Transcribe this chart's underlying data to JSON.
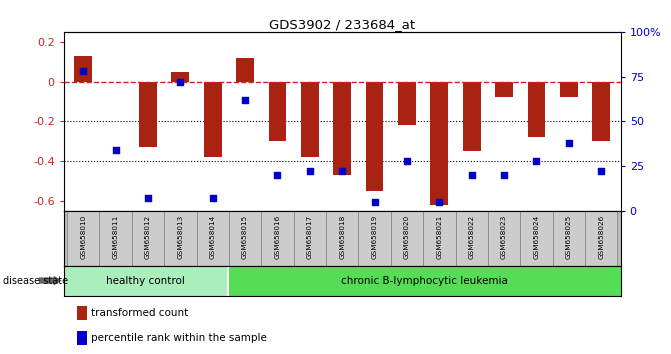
{
  "title": "GDS3902 / 233684_at",
  "samples": [
    "GSM658010",
    "GSM658011",
    "GSM658012",
    "GSM658013",
    "GSM658014",
    "GSM658015",
    "GSM658016",
    "GSM658017",
    "GSM658018",
    "GSM658019",
    "GSM658020",
    "GSM658021",
    "GSM658022",
    "GSM658023",
    "GSM658024",
    "GSM658025",
    "GSM658026"
  ],
  "bar_values": [
    0.13,
    0.0,
    -0.33,
    0.05,
    -0.38,
    0.12,
    -0.3,
    -0.38,
    -0.47,
    -0.55,
    -0.22,
    -0.62,
    -0.35,
    -0.08,
    -0.28,
    -0.08,
    -0.3
  ],
  "dot_values": [
    78,
    34,
    7,
    72,
    7,
    62,
    20,
    22,
    22,
    5,
    28,
    5,
    20,
    20,
    28,
    38,
    22
  ],
  "healthy_count": 5,
  "bar_color": "#AA2211",
  "dot_color": "#0000CC",
  "hline_color": "#CC2222",
  "ylim_left": [
    -0.65,
    0.25
  ],
  "ylim_right": [
    0,
    100
  ],
  "yticks_left": [
    -0.6,
    -0.4,
    -0.2,
    0.0,
    0.2
  ],
  "ytick_labels_left": [
    "-0.6",
    "-0.4",
    "-0.2",
    "0",
    "0.2"
  ],
  "yticks_right": [
    0,
    25,
    50,
    75,
    100
  ],
  "ytick_labels_right": [
    "0",
    "25",
    "50",
    "75",
    "100%"
  ],
  "healthy_label": "healthy control",
  "disease_label": "chronic B-lymphocytic leukemia",
  "healthy_bg": "#AAEEBB",
  "disease_bg": "#55DD55",
  "tick_area_bg": "#CCCCCC",
  "legend_bar": "transformed count",
  "legend_dot": "percentile rank within the sample",
  "disease_state_label": "disease state"
}
